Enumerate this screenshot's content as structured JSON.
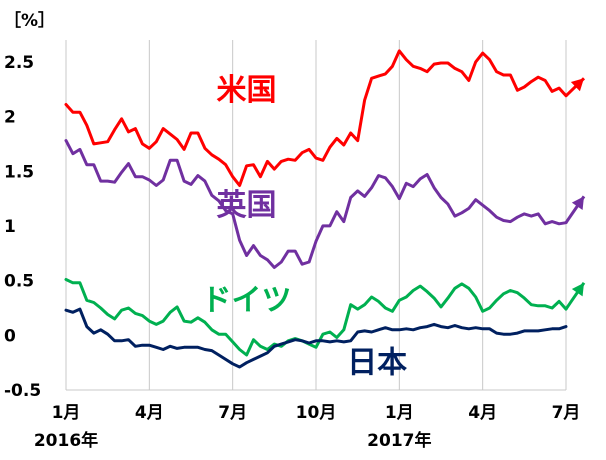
{
  "chart_data": {
    "type": "line",
    "unit_label": "［%］",
    "title": "",
    "xlabel": "",
    "ylabel": "",
    "ylim": [
      -0.5,
      2.7
    ],
    "yticks": [
      -0.5,
      0,
      0.5,
      1,
      1.5,
      2,
      2.5
    ],
    "ytick_labels": [
      "-0.5",
      "0",
      "0.5",
      "1",
      "1.5",
      "2",
      "2.5"
    ],
    "xlim": [
      0,
      18
    ],
    "xticks": [
      {
        "pos": 0,
        "label": "1月",
        "year": "2016年"
      },
      {
        "pos": 3,
        "label": "4月",
        "year": ""
      },
      {
        "pos": 6,
        "label": "7月",
        "year": ""
      },
      {
        "pos": 9,
        "label": "10月",
        "year": ""
      },
      {
        "pos": 12,
        "label": "1月",
        "year": "2017年"
      },
      {
        "pos": 15,
        "label": "4月",
        "year": ""
      },
      {
        "pos": 18,
        "label": "7月",
        "year": ""
      }
    ],
    "grid": "vertical",
    "series": [
      {
        "name": "米国",
        "color": "#ff0000",
        "label_pos": [
          6.5,
          2.15
        ],
        "arrow_to": 2.35,
        "x": [
          0,
          0.25,
          0.5,
          0.75,
          1,
          1.25,
          1.5,
          1.75,
          2,
          2.25,
          2.5,
          2.75,
          3,
          3.25,
          3.5,
          3.75,
          4,
          4.25,
          4.5,
          4.75,
          5,
          5.25,
          5.5,
          5.75,
          6,
          6.25,
          6.5,
          6.75,
          7,
          7.25,
          7.5,
          7.75,
          8,
          8.25,
          8.5,
          8.75,
          9,
          9.25,
          9.5,
          9.75,
          10,
          10.25,
          10.5,
          10.75,
          11,
          11.25,
          11.5,
          11.75,
          12,
          12.25,
          12.5,
          12.75,
          13,
          13.25,
          13.5,
          13.75,
          14,
          14.25,
          14.5,
          14.75,
          15,
          15.25,
          15.5,
          15.75,
          16,
          16.25,
          16.5,
          16.75,
          17,
          17.25,
          17.5,
          17.75,
          18
        ],
        "values": [
          2.11,
          2.04,
          2.04,
          1.92,
          1.75,
          1.76,
          1.77,
          1.88,
          1.98,
          1.86,
          1.89,
          1.75,
          1.71,
          1.77,
          1.89,
          1.84,
          1.79,
          1.7,
          1.85,
          1.85,
          1.71,
          1.65,
          1.61,
          1.56,
          1.45,
          1.37,
          1.55,
          1.56,
          1.45,
          1.59,
          1.52,
          1.59,
          1.61,
          1.6,
          1.67,
          1.7,
          1.62,
          1.6,
          1.72,
          1.8,
          1.74,
          1.85,
          1.78,
          2.15,
          2.35,
          2.37,
          2.39,
          2.46,
          2.6,
          2.52,
          2.46,
          2.44,
          2.41,
          2.48,
          2.49,
          2.49,
          2.44,
          2.41,
          2.33,
          2.5,
          2.58,
          2.52,
          2.41,
          2.38,
          2.38,
          2.24,
          2.27,
          2.32,
          2.36,
          2.33,
          2.23,
          2.26,
          2.19
        ]
      },
      {
        "name": "英国",
        "color": "#7030a0",
        "label_pos": [
          6.5,
          1.1
        ],
        "arrow_to": 1.27,
        "x": [
          0,
          0.25,
          0.5,
          0.75,
          1,
          1.25,
          1.5,
          1.75,
          2,
          2.25,
          2.5,
          2.75,
          3,
          3.25,
          3.5,
          3.75,
          4,
          4.25,
          4.5,
          4.75,
          5,
          5.25,
          5.5,
          5.75,
          6,
          6.25,
          6.5,
          6.75,
          7,
          7.25,
          7.5,
          7.75,
          8,
          8.25,
          8.5,
          8.75,
          9,
          9.25,
          9.5,
          9.75,
          10,
          10.25,
          10.5,
          10.75,
          11,
          11.25,
          11.5,
          11.75,
          12,
          12.25,
          12.5,
          12.75,
          13,
          13.25,
          13.5,
          13.75,
          14,
          14.25,
          14.5,
          14.75,
          15,
          15.25,
          15.5,
          15.75,
          16,
          16.25,
          16.5,
          16.75,
          17,
          17.25,
          17.5,
          17.75,
          18
        ],
        "values": [
          1.78,
          1.66,
          1.7,
          1.56,
          1.56,
          1.41,
          1.41,
          1.4,
          1.49,
          1.57,
          1.45,
          1.45,
          1.42,
          1.37,
          1.42,
          1.6,
          1.6,
          1.41,
          1.38,
          1.46,
          1.41,
          1.28,
          1.23,
          1.14,
          1.11,
          0.87,
          0.73,
          0.82,
          0.73,
          0.69,
          0.62,
          0.67,
          0.77,
          0.77,
          0.65,
          0.67,
          0.86,
          1.0,
          1.0,
          1.13,
          1.04,
          1.26,
          1.32,
          1.27,
          1.35,
          1.46,
          1.44,
          1.36,
          1.25,
          1.39,
          1.36,
          1.43,
          1.47,
          1.35,
          1.26,
          1.2,
          1.09,
          1.12,
          1.16,
          1.24,
          1.19,
          1.14,
          1.08,
          1.05,
          1.04,
          1.08,
          1.11,
          1.09,
          1.11,
          1.02,
          1.04,
          1.02,
          1.03
        ]
      },
      {
        "name": "ドイツ",
        "color": "#00b050",
        "label_pos": [
          6.5,
          0.23
        ],
        "arrow_to": 0.48,
        "x": [
          0,
          0.25,
          0.5,
          0.75,
          1,
          1.25,
          1.5,
          1.75,
          2,
          2.25,
          2.5,
          2.75,
          3,
          3.25,
          3.5,
          3.75,
          4,
          4.25,
          4.5,
          4.75,
          5,
          5.25,
          5.5,
          5.75,
          6,
          6.25,
          6.5,
          6.75,
          7,
          7.25,
          7.5,
          7.75,
          8,
          8.25,
          8.5,
          8.75,
          9,
          9.25,
          9.5,
          9.75,
          10,
          10.25,
          10.5,
          10.75,
          11,
          11.25,
          11.5,
          11.75,
          12,
          12.25,
          12.5,
          12.75,
          13,
          13.25,
          13.5,
          13.75,
          14,
          14.25,
          14.5,
          14.75,
          15,
          15.25,
          15.5,
          15.75,
          16,
          16.25,
          16.5,
          16.75,
          17,
          17.25,
          17.5,
          17.75,
          18
        ],
        "values": [
          0.51,
          0.48,
          0.48,
          0.32,
          0.3,
          0.25,
          0.19,
          0.15,
          0.23,
          0.25,
          0.2,
          0.18,
          0.13,
          0.1,
          0.13,
          0.21,
          0.26,
          0.13,
          0.12,
          0.16,
          0.12,
          0.05,
          0.01,
          0.01,
          -0.06,
          -0.13,
          -0.18,
          -0.04,
          -0.1,
          -0.13,
          -0.08,
          -0.1,
          -0.05,
          -0.03,
          -0.05,
          -0.08,
          -0.11,
          0.01,
          0.03,
          -0.02,
          0.05,
          0.28,
          0.24,
          0.28,
          0.35,
          0.31,
          0.25,
          0.22,
          0.32,
          0.35,
          0.41,
          0.45,
          0.4,
          0.34,
          0.26,
          0.34,
          0.43,
          0.47,
          0.43,
          0.35,
          0.22,
          0.25,
          0.32,
          0.38,
          0.41,
          0.39,
          0.34,
          0.28,
          0.27,
          0.27,
          0.25,
          0.31,
          0.24
        ]
      },
      {
        "name": "日本",
        "color": "#002060",
        "label_pos": [
          11.2,
          -0.34
        ],
        "arrow_to": null,
        "x": [
          0,
          0.25,
          0.5,
          0.75,
          1,
          1.25,
          1.5,
          1.75,
          2,
          2.25,
          2.5,
          2.75,
          3,
          3.25,
          3.5,
          3.75,
          4,
          4.25,
          4.5,
          4.75,
          5,
          5.25,
          5.5,
          5.75,
          6,
          6.25,
          6.5,
          6.75,
          7,
          7.25,
          7.5,
          7.75,
          8,
          8.25,
          8.5,
          8.75,
          9,
          9.25,
          9.5,
          9.75,
          10,
          10.25,
          10.5,
          10.75,
          11,
          11.25,
          11.5,
          11.75,
          12,
          12.25,
          12.5,
          12.75,
          13,
          13.25,
          13.5,
          13.75,
          14,
          14.25,
          14.5,
          14.75,
          15,
          15.25,
          15.5,
          15.75,
          16,
          16.25,
          16.5,
          16.75,
          17,
          17.25,
          17.5,
          17.75,
          18
        ],
        "values": [
          0.23,
          0.21,
          0.24,
          0.08,
          0.02,
          0.05,
          0.01,
          -0.05,
          -0.05,
          -0.04,
          -0.1,
          -0.09,
          -0.09,
          -0.11,
          -0.13,
          -0.1,
          -0.12,
          -0.11,
          -0.11,
          -0.11,
          -0.13,
          -0.14,
          -0.18,
          -0.22,
          -0.26,
          -0.29,
          -0.25,
          -0.22,
          -0.19,
          -0.16,
          -0.1,
          -0.08,
          -0.06,
          -0.04,
          -0.05,
          -0.07,
          -0.05,
          -0.05,
          -0.06,
          -0.05,
          -0.06,
          -0.05,
          0.03,
          0.04,
          0.03,
          0.05,
          0.07,
          0.05,
          0.05,
          0.06,
          0.05,
          0.07,
          0.08,
          0.1,
          0.08,
          0.07,
          0.09,
          0.07,
          0.06,
          0.07,
          0.06,
          0.06,
          0.02,
          0.01,
          0.01,
          0.02,
          0.04,
          0.04,
          0.04,
          0.05,
          0.06,
          0.06,
          0.08
        ]
      }
    ]
  }
}
